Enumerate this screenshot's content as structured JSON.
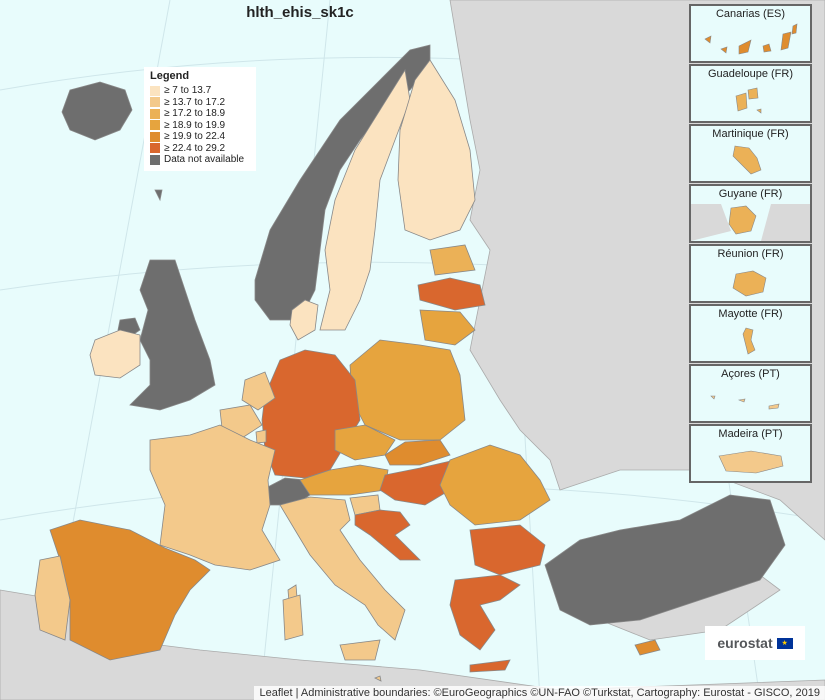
{
  "title": "hlth_ehis_sk1c",
  "legend": {
    "title": "Legend",
    "items": [
      {
        "label": "≥ 7 to 13.7",
        "color": "#fbe3c0"
      },
      {
        "label": "≥ 13.7 to 17.2",
        "color": "#f3c98b"
      },
      {
        "label": "≥ 17.2 to 18.9",
        "color": "#ebb157"
      },
      {
        "label": "≥ 18.9 to 19.9",
        "color": "#e6a43e"
      },
      {
        "label": "≥ 19.9 to 22.4",
        "color": "#df8c2e"
      },
      {
        "label": "≥ 22.4 to 29.2",
        "color": "#d9672e"
      },
      {
        "label": "Data not available",
        "color": "#6e6e6e"
      }
    ]
  },
  "colors": {
    "sea": "#e8fcfc",
    "land_outside": "#d9d9d9",
    "no_data": "#6e6e6e",
    "class1": "#fbe3c0",
    "class2": "#f3c98b",
    "class3": "#ebb157",
    "class4": "#e6a43e",
    "class5": "#df8c2e",
    "class6": "#d9672e"
  },
  "insets": [
    {
      "label": "Canarias (ES)",
      "color": "#df8c2e"
    },
    {
      "label": "Guadeloupe (FR)",
      "color": "#ebb157"
    },
    {
      "label": "Martinique (FR)",
      "color": "#ebb157"
    },
    {
      "label": "Guyane (FR)",
      "color": "#ebb157"
    },
    {
      "label": "Réunion (FR)",
      "color": "#ebb157"
    },
    {
      "label": "Mayotte (FR)",
      "color": "#ebb157"
    },
    {
      "label": "Açores (PT)",
      "color": "#f3c98b"
    },
    {
      "label": "Madeira (PT)",
      "color": "#f3c98b"
    }
  ],
  "logo": {
    "text": "eurostat"
  },
  "attribution": "Leaflet | Administrative boundaries: ©EuroGeographics ©UN-FAO ©Turkstat, Cartography: Eurostat - GISCO, 2019"
}
